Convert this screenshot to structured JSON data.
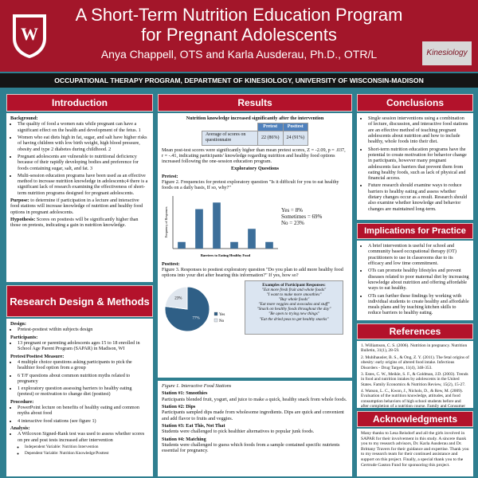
{
  "header": {
    "title": "A Short-Term Nutrition Education Program for Pregnant Adolescents",
    "authors": "Anya Chappell, OTS and Karla Ausderau, Ph.D., OTR/L",
    "logo_text": "Kinesiology",
    "department": "OCCUPATIONAL THERAPY PROGRAM, DEPARTMENT OF KINESIOLOGY, UNIVERSITY OF WISCONSIN-MADISON"
  },
  "introduction": {
    "heading": "Introduction",
    "background_label": "Background:",
    "bullets": [
      "The quality of food a women eats while pregnant can have a significant effect on the health and development of the fetus. 1",
      "Women who eat diets high in fat, sugar, and salt have higher risks of having children with low birth weight, high blood pressure, obesity and type 2 diabetes during childhood. 2",
      "Pregnant adolescents are vulnerable to nutritional deficiency because of their rapidly developing bodies and preference for foods containing sugar, salt, and fat. 3",
      "Multi-session education programs have been used as an effective method to increase nutrition knowledge in adolescents;4 there is a significant lack of research examining the effectiveness of short-term nutrition programs designed for pregnant adolescents."
    ],
    "purpose_label": "Purpose:",
    "purpose": "to determine if participation in a lecture and interactive food stations will increase knowledge of nutrition and healthy food options in pregnant adolescents.",
    "hypothesis_label": "Hypothesis:",
    "hypothesis": "Scores on posttests will be significantly higher than those on pretests, indicating a gain in nutrition knowledge."
  },
  "methods": {
    "heading": "Research Design & Methods",
    "items": [
      {
        "label": "Design:",
        "bullets": [
          "Pretest-posttest within subjects design"
        ]
      },
      {
        "label": "Participants:",
        "bullets": [
          "13 pregnant or parenting adolescents ages 15 to 18 enrolled in School Age Parent Program (SAPAR) in Madison, WI"
        ]
      },
      {
        "label": "Pretest/Posttest Measure:",
        "bullets": [
          "4 multiple choice questions asking participants to pick the healthier food option from a group",
          "6 T/F questions about common nutrition myths related to pregnancy",
          "1 exploratory question assessing barriers to healthy eating (pretest) or motivation to change diet (posttest)"
        ]
      },
      {
        "label": "Procedure:",
        "bullets": [
          "PowerPoint lecture on benefits of healthy eating and common myths about food",
          "4 interactive food stations (see figure 1)"
        ]
      },
      {
        "label": "Analysis:",
        "bullets": [
          "A Wilcoxon Signed-Rank test was used to assess whether scores on pre and post tests increased after intervention"
        ]
      }
    ],
    "sub_bullets": [
      "Independent Variable: Nutrition Intervention",
      "Dependent Variable: Nutrition Knowledge/Posttest"
    ]
  },
  "results": {
    "heading": "Results",
    "table_title": "Nutrition knowledge increased significantly after the intervention",
    "table": {
      "header": [
        "Pretest",
        "Posttest"
      ],
      "rows": [
        [
          "Average of scores on questionnaire",
          "22 (86%)",
          "24 (91%)"
        ]
      ]
    },
    "stats": "Mean post-test scores were significantly higher than mean pretest scores, Z = -2.09, p = .037, r = -.41, indicating participants' knowledge regarding nutrition and healthy food options increased following the one-session education program.",
    "exploratory_heading": "Exploratory Questions",
    "pretest_label": "Pretest:",
    "figure2": "Figure 2. Frequencies for pretest exploratory question \"Is it difficult for you to eat healthy foods on a daily basis, If so, why?\"",
    "bar_chart": {
      "type": "bar",
      "y_title": "Frequency of Responses",
      "x_title": "Barriers to Eating Healthy Food",
      "values": [
        1,
        6,
        7,
        1,
        3,
        1
      ],
      "color": "#3d6f9a",
      "ylim": [
        0,
        8
      ]
    },
    "answers": [
      "Yes = 8%",
      "Sometimes = 69%",
      "No = 23%"
    ],
    "posttest_label": "Posttest:",
    "figure3": "Figure 3. Responses to posttest exploratory question \"Do you plan to add more healthy food options into your diet after hearing this information?\" If yes, how so?",
    "pie_chart": {
      "type": "pie",
      "names": [
        "Yes",
        "No"
      ],
      "values": [
        77,
        23
      ],
      "value_labels": [
        "77%",
        "23%"
      ],
      "colors": [
        "#2f5f86",
        "#dfe6ee"
      ]
    },
    "examples_title": "Examples of Participant Responses:",
    "examples": [
      "\"Eat more fresh fruit and whole foods\"",
      "\"I want to make more smoothies\"",
      "\"Buy whole foods\"",
      "\"Eat more veggies and avocados and stuff\"",
      "\"Snack on healthy foods throughout the day\"",
      "\"Be open to trying new things\"",
      "\"Eat the dried peas to get healthy snacks\""
    ],
    "figure1": "Figure 1. Interactive Food Stations",
    "stations": [
      {
        "title": "Station #1: Smoothies",
        "text": "Participants blended fruit, yogurt, and juice to make a quick, healthy snack from whole foods."
      },
      {
        "title": "Station #2: Dips",
        "text": "Participants sampled dips made from wholesome ingredients. Dips are quick and convenient and add flavor to fruits and veggies."
      },
      {
        "title": "Station #3: Eat This, Not That",
        "text": "Students were challenged to pick healthier alternatives to popular junk foods."
      },
      {
        "title": "Station #4: Matching",
        "text": "Students were challenged to guess which foods from a sample contained specific nutrients essential for pregnancy."
      }
    ]
  },
  "conclusions": {
    "heading": "Conclusions",
    "bullets": [
      "Single session interventions using a combination of lecture, discussion, and interactive food stations are an effective method of teaching pregnant adolescents about nutrition and how to include healthy, whole foods into their diet.",
      "Short-term nutrition education programs have the potential to create motivation for behavior change in participants, however many pregnant adolescents face barriers that prevent them from eating healthy foods, such as lack of physical and financial access.",
      "Future research should examine ways to reduce barriers to healthy eating and assess whether dietary changes occur as a result. Research should also examine whether knowledge and behavior changes are maintained long-term."
    ]
  },
  "implications": {
    "heading": "Implications for Practice",
    "bullets": [
      "A brief intervention is useful for school and community based occupational therapy (OT) practitioners to use in classrooms due to its efficacy and low time commitment.",
      "OTs can promote healthy lifestyles and prevent diseases related to poor maternal diet by increasing knowledge about nutrition and offering affordable ways to eat healthy.",
      "OTs can further these findings by working with individual students to create healthy and affordable meals plans and by teaching kitchen skills to reduce barriers to healthy eating."
    ]
  },
  "references": {
    "heading": "References",
    "items": [
      "1. Williamson, C. S. (2006). Nutrition in pregnancy. Nutrition Bulletin, 31(1), 28-59.",
      "2. Muhlhausler, B. S., & Ong, Z. Y. (2011). The fetal origins of obesity: early origins of altered food intake. Infectious Disorders - Drug Targets, 11(4), 348-353.",
      "3. Estes, C. W., Meikle, S. F., & Goldman, J.D. (2003). Trends in food and nutrition intakes by adolescents in the United States. Family Economics & Nutrition Review, 15(2), 15-27.",
      "4. Watson, L. C., Kwon, J., Nichols, D., & Rew, M. (2009). Evaluation of the nutrition knowledge, attitudes, and food consumption behaviors of high school students before and after completion of a nutrition course. Family and Consumer Sciences Research Journal 37(4), 523-534."
    ]
  },
  "acknowledgments": {
    "heading": "Acknowledgments",
    "text": "Many thanks to Lesa Reisdorf and all the girls involved in SAPAR for their involvement in this study. A sincere thank you to my research advisors, Dr. Karla Ausderau and Dr. Brittany Travers for their guidance and expertise. Thank you to my research team for their continued assistance and support on this project. Finally, a special thank you to the Gertrude Gaston Fund for sponsoring this project."
  }
}
